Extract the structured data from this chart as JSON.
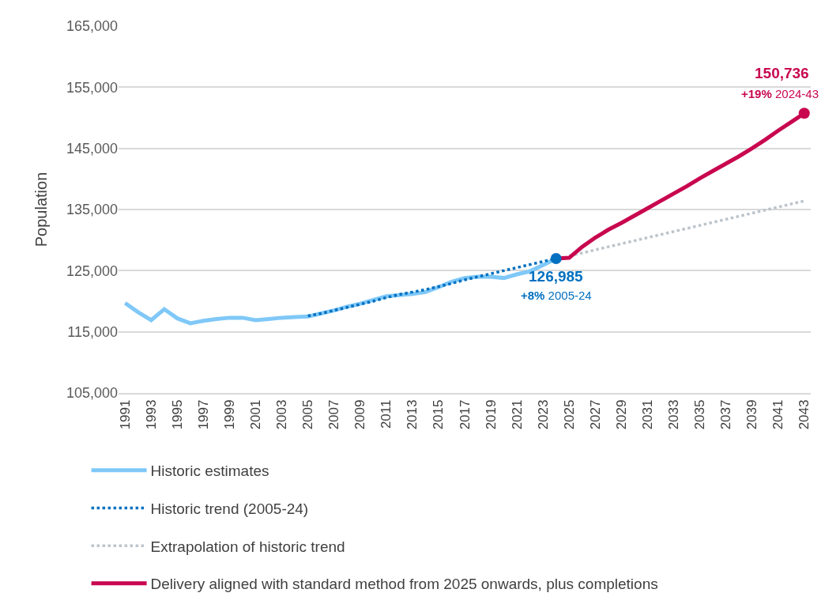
{
  "chart_data": {
    "type": "line",
    "ylabel": "Population",
    "xlim": [
      1990.5,
      2043.5
    ],
    "xticks": [
      1991,
      1993,
      1995,
      1997,
      1999,
      2001,
      2003,
      2005,
      2007,
      2009,
      2011,
      2013,
      2015,
      2017,
      2019,
      2021,
      2023,
      2025,
      2027,
      2029,
      2031,
      2033,
      2035,
      2037,
      2039,
      2041,
      2043
    ],
    "ylim": [
      105000,
      165000
    ],
    "yticks": [
      {
        "value": 105000,
        "label": "105,000"
      },
      {
        "value": 115000,
        "label": "115,000"
      },
      {
        "value": 125000,
        "label": "125,000"
      },
      {
        "value": 135000,
        "label": "135,000"
      },
      {
        "value": 145000,
        "label": "145,000"
      },
      {
        "value": 155000,
        "label": "155,000"
      },
      {
        "value": 165000,
        "label": "165,000"
      }
    ],
    "grid": "y",
    "legend": "bottom",
    "series": [
      {
        "name": "Historic estimates",
        "color": "#7fc8f8",
        "line_style": "solid",
        "x": [
          1991,
          1992,
          1993,
          1994,
          1995,
          1996,
          1997,
          1998,
          1999,
          2000,
          2001,
          2002,
          2003,
          2004,
          2005,
          2006,
          2007,
          2008,
          2009,
          2010,
          2011,
          2012,
          2013,
          2014,
          2015,
          2016,
          2017,
          2018,
          2019,
          2020,
          2021,
          2022,
          2023,
          2024
        ],
        "values": [
          119700,
          118200,
          116900,
          118700,
          117200,
          116400,
          116800,
          117100,
          117300,
          117300,
          116900,
          117100,
          117300,
          117400,
          117500,
          118000,
          118500,
          119100,
          119600,
          120200,
          120800,
          121000,
          121200,
          121500,
          122300,
          123200,
          123800,
          124000,
          124000,
          123800,
          124400,
          124900,
          125900,
          126985
        ]
      },
      {
        "name": "Historic trend (2005-24)",
        "color": "#0070c0",
        "line_style": "dotted",
        "x": [
          2005,
          2006,
          2007,
          2008,
          2009,
          2010,
          2011,
          2012,
          2013,
          2014,
          2015,
          2016,
          2017,
          2018,
          2019,
          2020,
          2021,
          2022,
          2023,
          2024
        ],
        "values": [
          117600,
          118000,
          118500,
          119000,
          119500,
          120000,
          120600,
          121100,
          121500,
          121900,
          122400,
          122900,
          123500,
          124000,
          124500,
          125000,
          125500,
          126000,
          126500,
          126985
        ]
      },
      {
        "name": "Extrapolation of historic trend",
        "color": "#bcc4cb",
        "line_style": "dotted",
        "x": [
          2025,
          2026,
          2027,
          2028,
          2029,
          2030,
          2031,
          2032,
          2033,
          2034,
          2035,
          2036,
          2037,
          2038,
          2039,
          2040,
          2041,
          2042,
          2043
        ],
        "values": [
          127400,
          127900,
          128400,
          128900,
          129400,
          129900,
          130400,
          130900,
          131400,
          131900,
          132400,
          132900,
          133400,
          133900,
          134400,
          134900,
          135400,
          135900,
          136400
        ]
      },
      {
        "name": "Delivery aligned with standard method from 2025 onwards, plus completions",
        "color": "#c8074f",
        "line_style": "solid",
        "x": [
          2024,
          2025,
          2026,
          2027,
          2028,
          2029,
          2030,
          2031,
          2032,
          2033,
          2034,
          2035,
          2036,
          2037,
          2038,
          2039,
          2040,
          2041,
          2042,
          2043
        ],
        "values": [
          126985,
          127100,
          128900,
          130400,
          131700,
          132800,
          134000,
          135200,
          136400,
          137600,
          138800,
          140100,
          141300,
          142500,
          143700,
          145000,
          146400,
          147900,
          149300,
          150736
        ]
      }
    ],
    "annotations": [
      {
        "text": "126,985",
        "x": 2024,
        "y": 126985
      },
      "+8% 2005-24",
      {
        "text": "150,736",
        "x": 2043,
        "y": 150736
      },
      "+19% 2024-43"
    ]
  }
}
